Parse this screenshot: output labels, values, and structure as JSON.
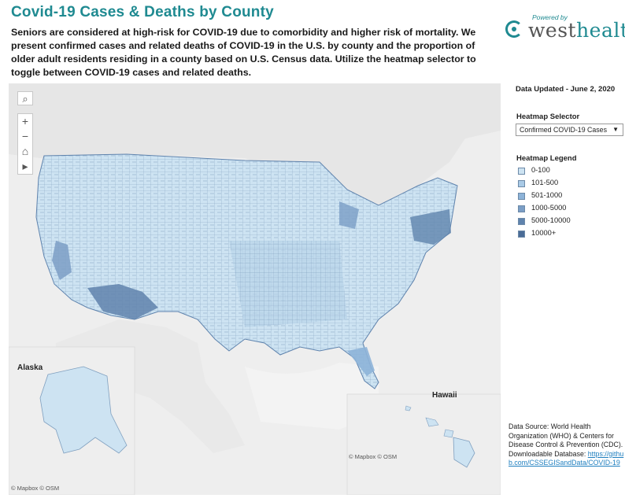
{
  "header": {
    "title": "Covid-19 Cases & Deaths by County",
    "description": "Seniors are considered at high-risk for COVID-19 due to comorbidity and higher risk of mortality. We present confirmed cases and related deaths of COVID-19 in the U.S. by county and the proportion of older adult residents residing in a county based on U.S. Census data. Utilize the heatmap selector to toggle between COVID-19 cases and related deaths."
  },
  "logo": {
    "powered": "Powered by",
    "west": "west",
    "health": "health"
  },
  "map": {
    "controls": {
      "search_icon": "⌕",
      "zoom_in": "+",
      "zoom_out": "−",
      "home_icon": "⌂",
      "play_icon": "▸"
    },
    "alaska_label": "Alaska",
    "hawaii_label": "Hawaii",
    "attribution_main": "© Mapbox © OSM",
    "attribution_hawaii": "© Mapbox © OSM"
  },
  "side": {
    "updated": "Data Updated - June 2, 2020",
    "selector_label": "Heatmap Selector",
    "selector_value": "Confirmed COVID-19 Cases",
    "legend_title": "Heatmap Legend",
    "legend": [
      {
        "label": "0-100",
        "color": "#cde3f2"
      },
      {
        "label": "101-500",
        "color": "#a9cae6"
      },
      {
        "label": "501-1000",
        "color": "#8db3d8"
      },
      {
        "label": "1000-5000",
        "color": "#7b9ec6"
      },
      {
        "label": "5000-10000",
        "color": "#5f83ad"
      },
      {
        "label": "10000+",
        "color": "#4a6c97"
      }
    ],
    "source_text": "Data Source: World Health Organization (WHO) & Centers for Disease Control & Prevention (CDC). Downloadable Database:",
    "source_link": "https://github.com/CSSEGISandData/COVID-19"
  },
  "colors": {
    "accent": "#1f8a91",
    "land": "#e9e9e9",
    "water": "#f4f4f4"
  }
}
